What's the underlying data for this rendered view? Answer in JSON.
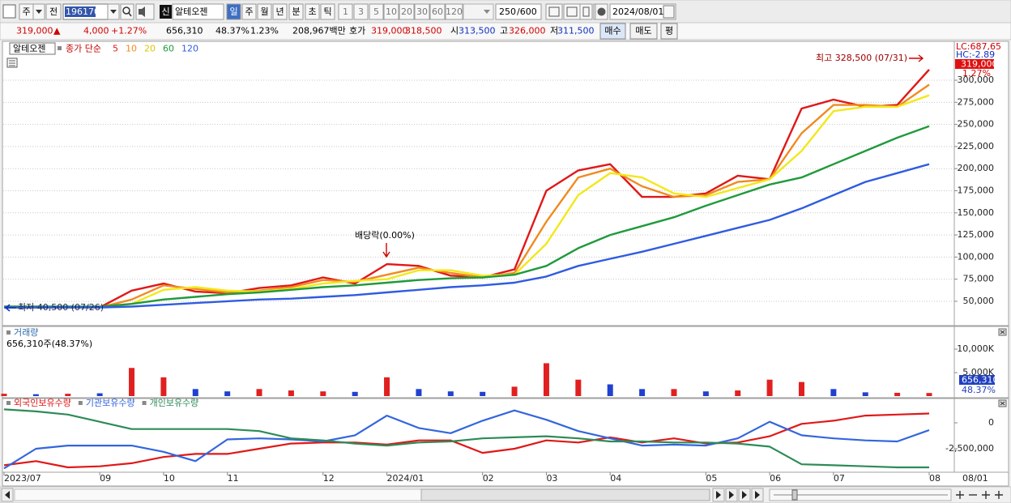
{
  "toolbar": {
    "period": "주",
    "prev": "전",
    "code": "196170",
    "new_tag": "신",
    "name": "알테오젠",
    "units": [
      "일",
      "주",
      "월",
      "년",
      "분",
      "초",
      "틱"
    ],
    "intervals": [
      "1",
      "3",
      "5",
      "10",
      "20",
      "30",
      "60",
      "120"
    ],
    "count": "250",
    "count_max": "/600",
    "date": "2024/08/01"
  },
  "info_bar": {
    "price": "319,000",
    "direction": "▲",
    "change": "4,000",
    "change_pct": "+1.27%",
    "volume": "656,310",
    "volume_ratio": "48.37%",
    "turnover": "1.23%",
    "amount": "208,967백만",
    "quote_label": "호가",
    "ask": "319,000",
    "bid": "318,500",
    "open_label": "시",
    "open": "313,500",
    "high_label": "고",
    "high": "326,000",
    "low_label": "저",
    "low": "311,500",
    "buy": "매수",
    "sell": "매도",
    "avg": "평"
  },
  "chart_data": [
    {
      "type": "line",
      "title": "알테오젠",
      "legend_prefix": "종가 단순",
      "categories": [
        "2023/07",
        null,
        null,
        "09",
        null,
        "10",
        null,
        "11",
        null,
        null,
        "12",
        null,
        "2024/01",
        null,
        null,
        "02",
        null,
        "03",
        null,
        "04",
        null,
        null,
        "05",
        null,
        "06",
        null,
        "07",
        null,
        null,
        "08"
      ],
      "series": [
        {
          "name": "5",
          "color": "#e01818",
          "values": [
            43000,
            43000,
            43000,
            43000,
            62000,
            70000,
            61000,
            59000,
            65000,
            68000,
            77000,
            70000,
            92000,
            90000,
            79000,
            77000,
            86000,
            175000,
            198000,
            205000,
            168000,
            168000,
            172000,
            192000,
            188000,
            268000,
            278000,
            270000,
            272000,
            312000
          ]
        },
        {
          "name": "10",
          "color": "#f08a20",
          "values": [
            43000,
            43000,
            43000,
            43000,
            52000,
            68000,
            64000,
            60000,
            62000,
            66000,
            74000,
            72000,
            80000,
            88000,
            82000,
            77000,
            82000,
            140000,
            190000,
            200000,
            180000,
            168000,
            170000,
            185000,
            188000,
            240000,
            272000,
            272000,
            270000,
            295000
          ]
        },
        {
          "name": "20",
          "color": "#f2e81a",
          "values": [
            44000,
            44000,
            43000,
            43000,
            47000,
            63000,
            66000,
            62000,
            61000,
            64000,
            70000,
            73000,
            75000,
            85000,
            85000,
            79000,
            80000,
            115000,
            170000,
            195000,
            190000,
            172000,
            168000,
            178000,
            188000,
            220000,
            265000,
            270000,
            270000,
            283000
          ]
        },
        {
          "name": "60",
          "color": "#1f9a3c",
          "values": [
            44000,
            44000,
            44000,
            44000,
            47000,
            52000,
            55000,
            58000,
            60000,
            63000,
            66000,
            68000,
            71000,
            74000,
            76000,
            77000,
            80000,
            90000,
            110000,
            125000,
            135000,
            145000,
            158000,
            170000,
            182000,
            190000,
            205000,
            220000,
            235000,
            248000
          ]
        },
        {
          "name": "120",
          "color": "#2f5ce0",
          "values": [
            43000,
            43000,
            43000,
            43000,
            44000,
            46000,
            48000,
            50000,
            52000,
            53000,
            55000,
            57000,
            60000,
            63000,
            66000,
            68000,
            71000,
            78000,
            90000,
            98000,
            106000,
            115000,
            124000,
            133000,
            142000,
            155000,
            170000,
            185000,
            195000,
            205000
          ]
        }
      ],
      "ylim": [
        24300,
        344000
      ],
      "yticks": [
        {
          "value": 50000,
          "label": "50,000"
        },
        {
          "value": 75000,
          "label": "75,000"
        },
        {
          "value": 100000,
          "label": "100,000"
        },
        {
          "value": 125000,
          "label": "125,000"
        },
        {
          "value": 150000,
          "label": "150,000"
        },
        {
          "value": 175000,
          "label": "175,000"
        },
        {
          "value": 200000,
          "label": "200,000"
        },
        {
          "value": 225000,
          "label": "225,000"
        },
        {
          "value": 250000,
          "label": "250,000"
        },
        {
          "value": 275000,
          "label": "275,000"
        },
        {
          "value": 300000,
          "label": "300,000"
        }
      ],
      "grid": true,
      "annotations": {
        "high": "최고 328,500 (07/31)",
        "low": "최저 40,500 (07/26)",
        "event": "배당락(0.00%)"
      },
      "axis_labels": {
        "lc": "LC:687,65",
        "hc": "HC:-2.89",
        "current": "319,000",
        "current_pct": "1.27%"
      }
    },
    {
      "type": "bar",
      "title": "거래량",
      "subtitle": "656,310주(48.37%)",
      "values": [
        500,
        400,
        500,
        600,
        6000,
        4000,
        1500,
        1000,
        1500,
        1200,
        1000,
        900,
        4000,
        1500,
        1000,
        900,
        2000,
        7000,
        3500,
        2500,
        1500,
        1500,
        1000,
        1200,
        3500,
        3000,
        1500,
        800,
        700,
        656.31
      ],
      "colors": [
        "#e02020",
        "#2040d0",
        "#e02020",
        "#2040d0",
        "#e02020",
        "#e02020",
        "#2040d0",
        "#2040d0",
        "#e02020",
        "#e02020",
        "#e02020",
        "#2040d0",
        "#e02020",
        "#2040d0",
        "#2040d0",
        "#2040d0",
        "#e02020",
        "#e02020",
        "#e02020",
        "#2040d0",
        "#2040d0",
        "#e02020",
        "#2040d0",
        "#e02020",
        "#e02020",
        "#e02020",
        "#2040d0",
        "#2040d0",
        "#e02020",
        "#e02020"
      ],
      "ylim": [
        0,
        14500
      ],
      "yticks": [
        {
          "value": 5000,
          "label": "5,000K"
        },
        {
          "value": 10000,
          "label": "10,000K"
        }
      ],
      "current_label": "656,310",
      "current_pct": "48.37%"
    },
    {
      "type": "line",
      "series": [
        {
          "name": "외국인보유수량",
          "color": "#e01818",
          "values": [
            -4100000,
            -3700000,
            -4300000,
            -4200000,
            -3900000,
            -3300000,
            -3000000,
            -3000000,
            -2500000,
            -2000000,
            -1900000,
            -1900000,
            -2100000,
            -1700000,
            -1700000,
            -2900000,
            -2500000,
            -1700000,
            -1900000,
            -1400000,
            -1900000,
            -1500000,
            -2000000,
            -1900000,
            -1300000,
            -100000,
            200000,
            700000,
            800000,
            900000
          ]
        },
        {
          "name": "기관보유수량",
          "color": "#3366dd",
          "values": [
            -4400000,
            -2500000,
            -2200000,
            -2200000,
            -2200000,
            -2800000,
            -3700000,
            -1600000,
            -1500000,
            -1600000,
            -1800000,
            -1200000,
            700000,
            -500000,
            -1000000,
            200000,
            1200000,
            300000,
            -800000,
            -1500000,
            -2200000,
            -2100000,
            -2200000,
            -1500000,
            100000,
            -1200000,
            -1500000,
            -1700000,
            -1800000,
            -700000
          ]
        },
        {
          "name": "개인보유수량",
          "color": "#2e8b57",
          "values": [
            1300000,
            1100000,
            800000,
            100000,
            -600000,
            -600000,
            -600000,
            -600000,
            -800000,
            -1500000,
            -1700000,
            -2000000,
            -2200000,
            -1900000,
            -1800000,
            -1500000,
            -1400000,
            -1300000,
            -1500000,
            -1800000,
            -1800000,
            -1900000,
            -1900000,
            -2000000,
            -2300000,
            -4000000,
            -4100000,
            -4200000,
            -4300000,
            -4300000
          ]
        }
      ],
      "ylim": [
        -4770000,
        1330000
      ],
      "yticks": [
        0,
        {
          "value": -2500000,
          "label": "-2,500,000"
        }
      ]
    }
  ],
  "bottom_axis": {
    "date": "08/01"
  }
}
